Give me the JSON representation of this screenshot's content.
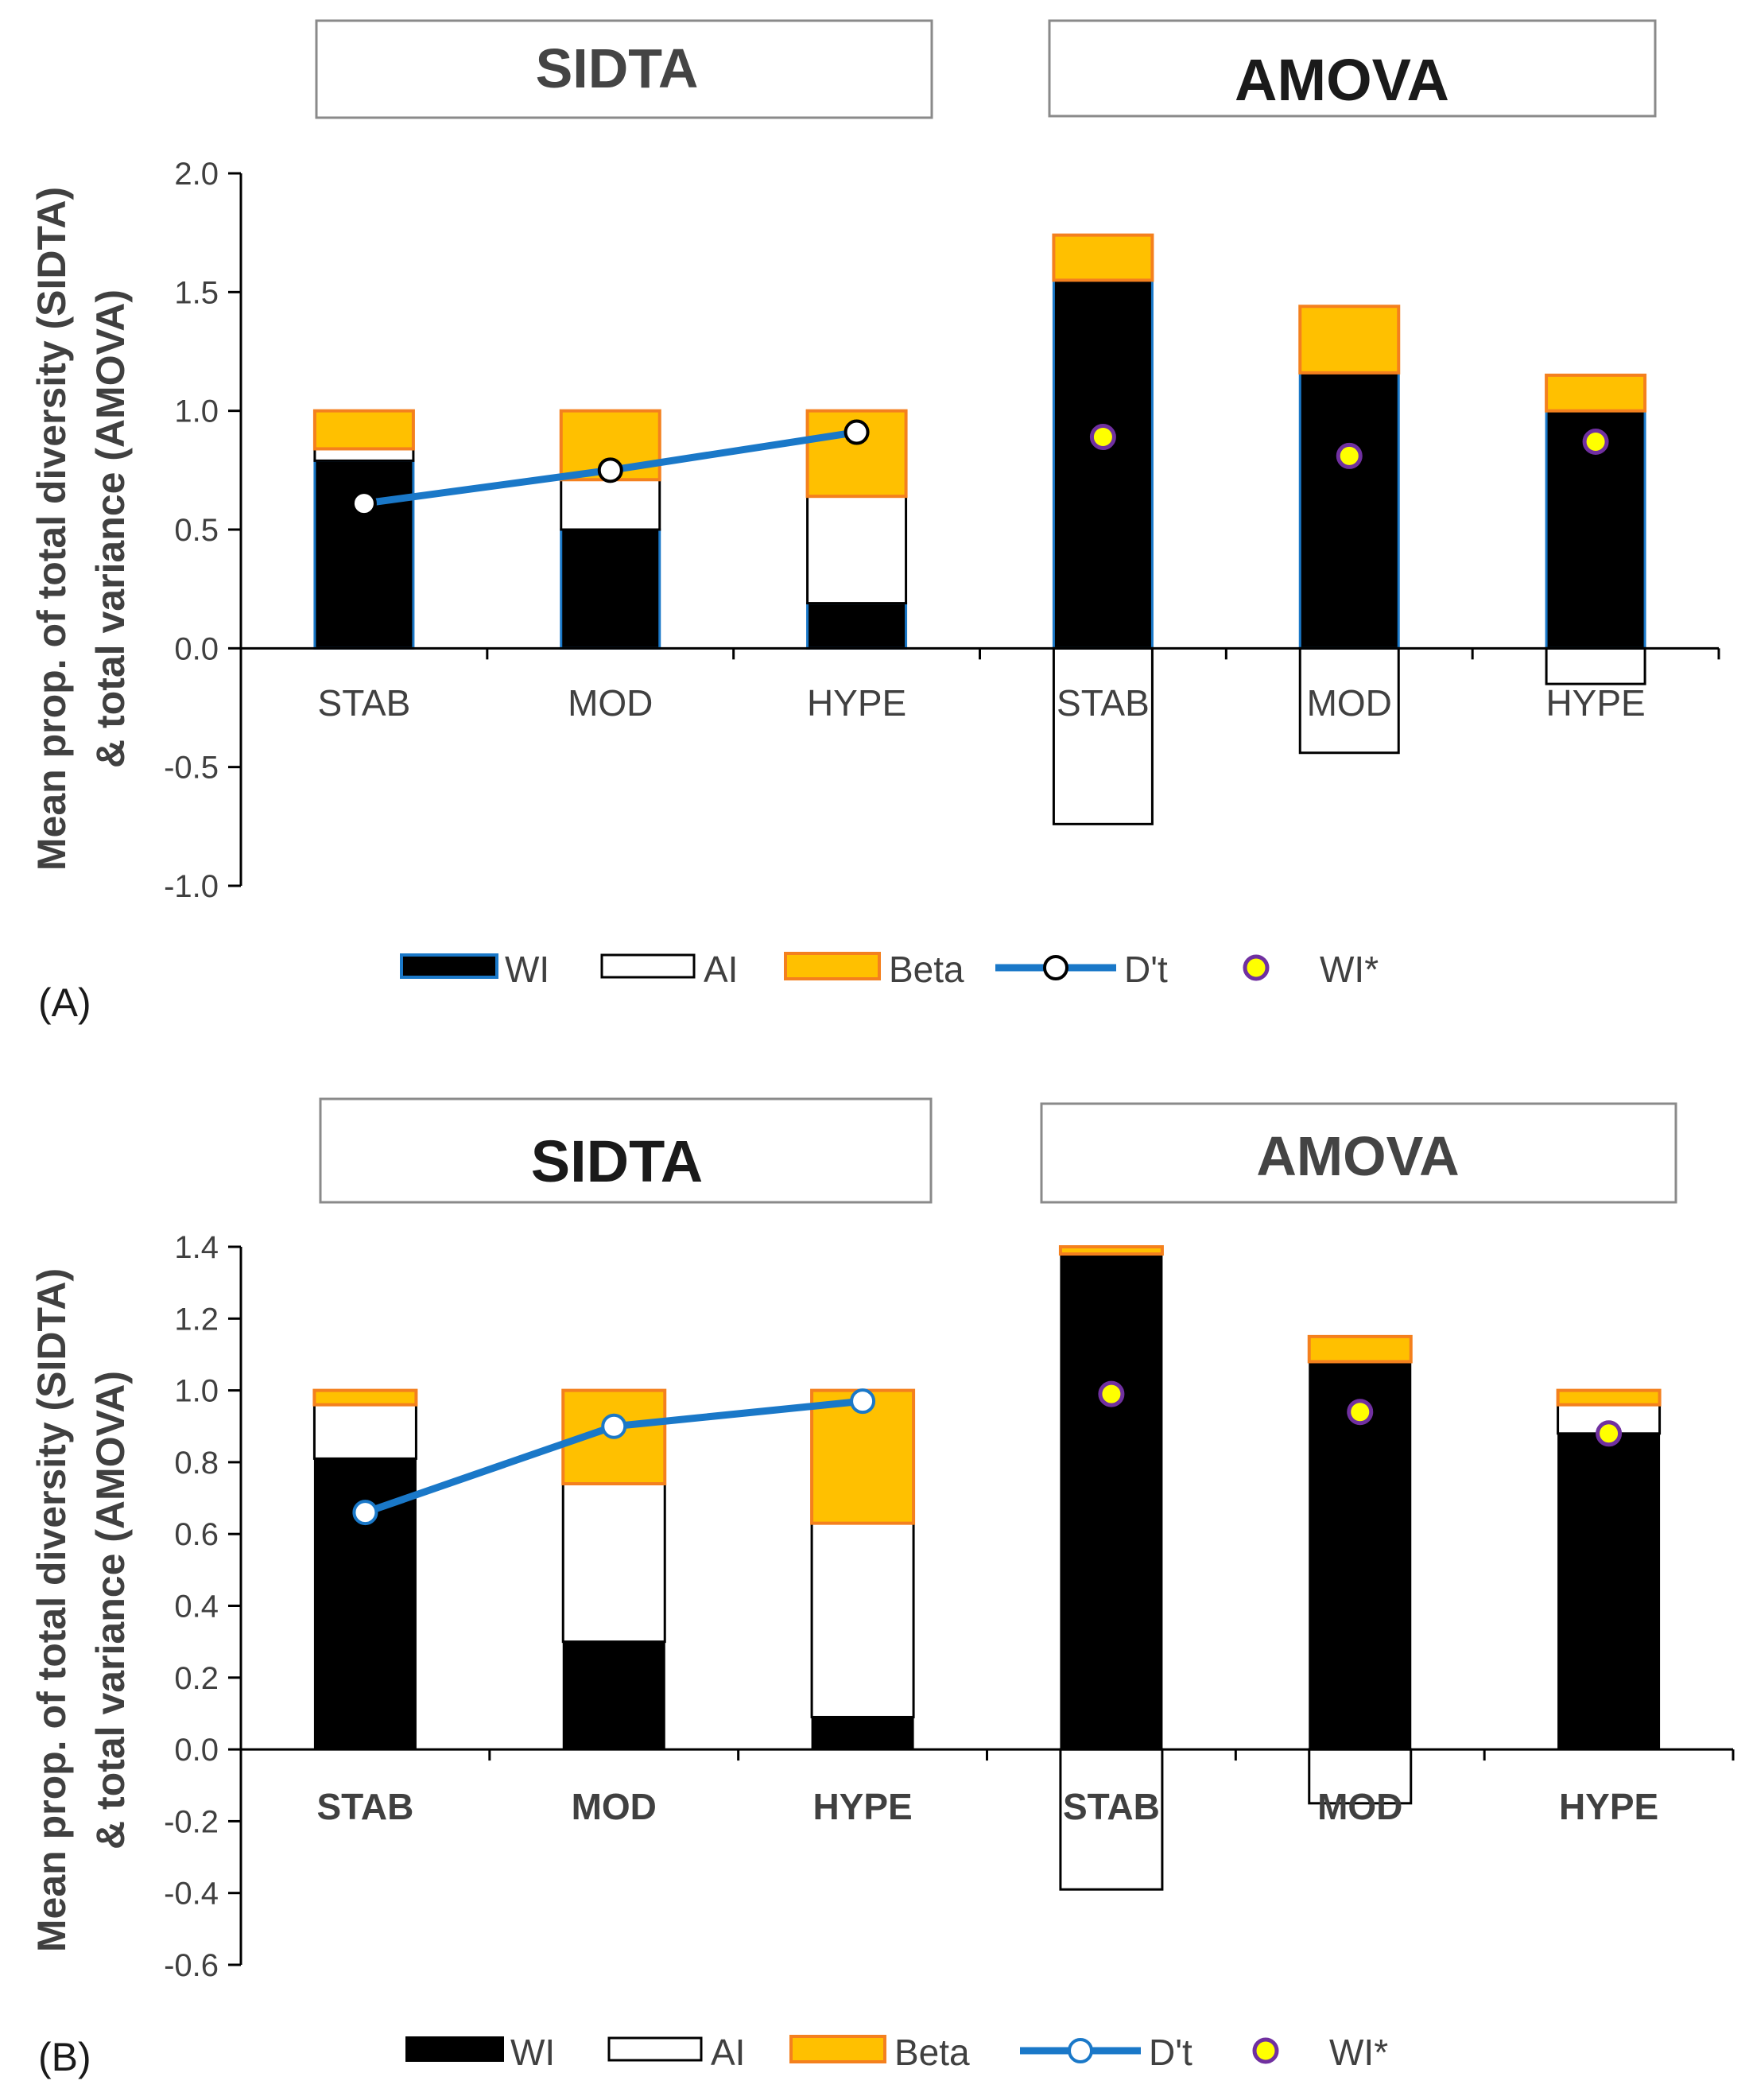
{
  "chart_data": [
    {
      "panel": "(A)",
      "type": "bar",
      "stacked": true,
      "groups": [
        "SIDTA",
        "AMOVA"
      ],
      "categories": [
        "STAB",
        "MOD",
        "HYPE",
        "STAB",
        "MOD",
        "HYPE"
      ],
      "ylabel": "Mean prop. of total diversity (SIDTA) & total variance (AMOVA)",
      "ylim": [
        -1.0,
        2.0
      ],
      "yticks": [
        "-1.0",
        "-0.5",
        "0.0",
        "0.5",
        "1.0",
        "1.5",
        "2.0"
      ],
      "ytick_values": [
        -1.0,
        -0.5,
        0.0,
        0.5,
        1.0,
        1.5,
        2.0
      ],
      "series": [
        {
          "name": "WI",
          "values": [
            0.79,
            0.5,
            0.19,
            1.55,
            1.16,
            1.0
          ]
        },
        {
          "name": "AI",
          "values": [
            0.05,
            0.21,
            0.45,
            -0.74,
            -0.44,
            -0.15
          ]
        },
        {
          "name": "Beta",
          "values": [
            0.16,
            0.29,
            0.36,
            0.19,
            0.28,
            0.15
          ]
        },
        {
          "name": "D't",
          "type": "line",
          "values": [
            0.61,
            0.75,
            0.91,
            null,
            null,
            null
          ]
        },
        {
          "name": "WI*",
          "type": "scatter",
          "values": [
            null,
            null,
            null,
            0.89,
            0.81,
            0.87
          ]
        }
      ],
      "legend": [
        "WI",
        "AI",
        "Beta",
        "D't",
        "WI*"
      ]
    },
    {
      "panel": "(B)",
      "type": "bar",
      "stacked": true,
      "groups": [
        "SIDTA",
        "AMOVA"
      ],
      "categories": [
        "STAB",
        "MOD",
        "HYPE",
        "STAB",
        "MOD",
        "HYPE"
      ],
      "ylabel": "Mean prop. of total diversity (SIDTA) & total variance (AMOVA)",
      "ylim": [
        -0.6,
        1.4
      ],
      "yticks": [
        "-0.6",
        "-0.4",
        "-0.2",
        "0.0",
        "0.2",
        "0.4",
        "0.6",
        "0.8",
        "1.0",
        "1.2",
        "1.4"
      ],
      "ytick_values": [
        -0.6,
        -0.4,
        -0.2,
        0.0,
        0.2,
        0.4,
        0.6,
        0.8,
        1.0,
        1.2,
        1.4
      ],
      "series": [
        {
          "name": "WI",
          "values": [
            0.81,
            0.3,
            0.09,
            1.38,
            1.08,
            0.88
          ]
        },
        {
          "name": "AI",
          "values": [
            0.15,
            0.44,
            0.54,
            -0.39,
            -0.15,
            0.08
          ]
        },
        {
          "name": "Beta",
          "values": [
            0.04,
            0.26,
            0.37,
            0.02,
            0.07,
            0.04
          ]
        },
        {
          "name": "D't",
          "type": "line",
          "values": [
            0.66,
            0.9,
            0.97,
            null,
            null,
            null
          ]
        },
        {
          "name": "WI*",
          "type": "scatter",
          "values": [
            null,
            null,
            null,
            0.99,
            0.94,
            0.88
          ]
        }
      ],
      "legend": [
        "WI",
        "AI",
        "Beta",
        "D't",
        "WI*"
      ]
    }
  ],
  "colors": {
    "wi": "#000000",
    "ai": "#ffffff",
    "beta": "#ffc000",
    "beta_edge": "#f4801e",
    "line": "#1a78c8",
    "wistar_fill": "#ffff00",
    "wistar_edge": "#7030a0"
  }
}
